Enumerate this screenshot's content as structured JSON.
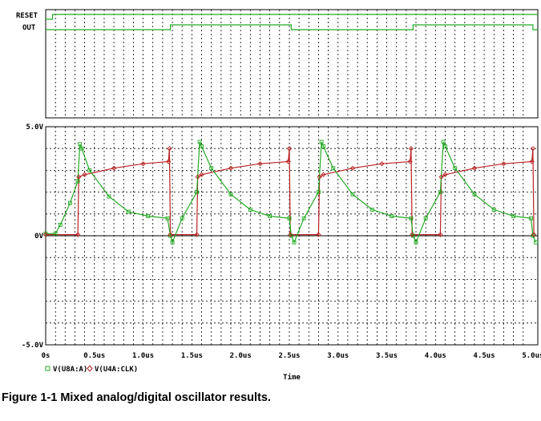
{
  "caption": "Figure 1-1  Mixed analog/digital oscillator results.",
  "chart_data": [
    {
      "type": "timing",
      "signals": [
        {
          "name": "RESET",
          "color": "#22aa22",
          "transitions": [
            [
              0,
              0
            ],
            [
              0.07,
              1
            ]
          ]
        },
        {
          "name": "OUT",
          "color": "#22aa22",
          "transitions": [
            [
              0,
              0
            ],
            [
              1.28,
              1
            ],
            [
              2.52,
              0
            ],
            [
              3.77,
              1
            ],
            [
              5.0,
              0
            ]
          ]
        }
      ]
    },
    {
      "type": "line",
      "x_label": "Time",
      "x_ticks": [
        "0s",
        "0.5us",
        "1.0us",
        "1.5us",
        "2.0us",
        "2.5us",
        "3.0us",
        "3.5us",
        "4.0us",
        "4.5us",
        "5.0us"
      ],
      "xlim": [
        0,
        5.05
      ],
      "y_ticks": [
        "5.0V",
        "0V",
        "-5.0V"
      ],
      "ylim": [
        -5,
        5
      ],
      "grid": true,
      "legend_position": "bottom-left",
      "series": [
        {
          "name": "V(U8A:A)",
          "marker": "square",
          "color": "#22aa22",
          "x": [
            0.0,
            0.1,
            0.15,
            0.25,
            0.33,
            0.35,
            0.37,
            0.45,
            0.65,
            0.85,
            1.05,
            1.25,
            1.28,
            1.3,
            1.4,
            1.55,
            1.58,
            1.6,
            1.7,
            1.9,
            2.1,
            2.3,
            2.5,
            2.52,
            2.55,
            2.65,
            2.8,
            2.83,
            2.85,
            2.95,
            3.15,
            3.35,
            3.55,
            3.75,
            3.77,
            3.8,
            3.9,
            4.05,
            4.08,
            4.1,
            4.2,
            4.4,
            4.6,
            4.8,
            4.98,
            5.0,
            5.03
          ],
          "y": [
            0.1,
            0.1,
            0.5,
            1.5,
            2.5,
            4.2,
            4.0,
            3.0,
            1.8,
            1.1,
            0.9,
            0.8,
            0.0,
            -0.3,
            0.8,
            2.0,
            4.3,
            4.1,
            3.1,
            1.9,
            1.2,
            0.9,
            0.8,
            0.0,
            -0.3,
            0.8,
            2.0,
            4.3,
            4.1,
            3.1,
            1.9,
            1.2,
            0.9,
            0.8,
            0.0,
            -0.3,
            0.8,
            2.0,
            4.3,
            4.1,
            3.1,
            1.9,
            1.2,
            0.9,
            0.8,
            0.0,
            -0.3
          ]
        },
        {
          "name": "V(U4A:CLK)",
          "marker": "diamond",
          "color": "#bb2222",
          "x": [
            0.0,
            0.33,
            0.34,
            0.4,
            0.7,
            1.0,
            1.26,
            1.27,
            1.28,
            1.55,
            1.56,
            1.6,
            1.9,
            2.2,
            2.49,
            2.5,
            2.51,
            2.8,
            2.81,
            2.85,
            3.15,
            3.45,
            3.74,
            3.75,
            3.76,
            4.05,
            4.06,
            4.1,
            4.4,
            4.7,
            4.99,
            5.0,
            5.01
          ],
          "y": [
            0.05,
            0.05,
            2.7,
            2.8,
            3.1,
            3.3,
            3.4,
            4.0,
            0.05,
            0.05,
            2.7,
            2.8,
            3.1,
            3.3,
            3.4,
            4.0,
            0.05,
            0.05,
            2.7,
            2.8,
            3.1,
            3.3,
            3.4,
            4.0,
            0.05,
            0.05,
            2.7,
            2.8,
            3.1,
            3.3,
            3.4,
            4.0,
            0.05
          ]
        }
      ]
    }
  ]
}
